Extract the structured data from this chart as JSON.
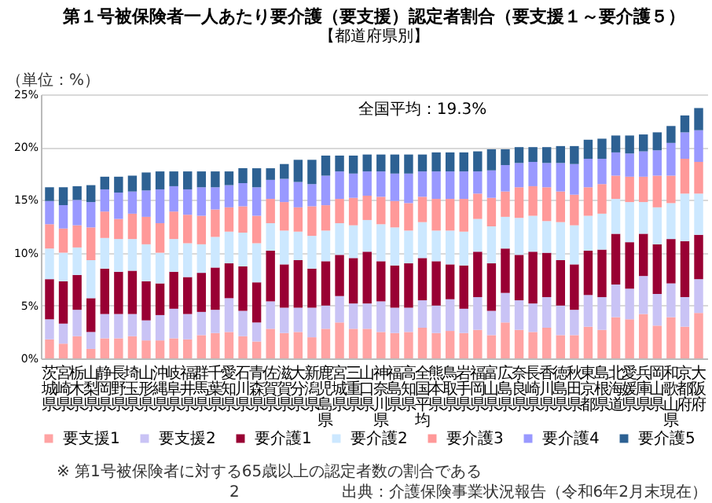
{
  "chart_data": {
    "type": "bar",
    "stacked": true,
    "title": "第１号被保険者一人あたり要介護（要支援）認定者割合（要支援１～要介護５）",
    "subtitle": "【都道府県別】",
    "categories": [
      "茨城県",
      "宮崎県",
      "栃木県",
      "山梨県",
      "静岡県",
      "長野県",
      "埼玉県",
      "山形県",
      "沖縄県",
      "岐阜県",
      "福井県",
      "群馬県",
      "千葉県",
      "愛知県",
      "石川県",
      "青森県",
      "佐賀県",
      "滋賀県",
      "大分県",
      "新潟県",
      "鹿児島県",
      "宮城県",
      "三重県",
      "山口県",
      "神奈川県",
      "福島県",
      "高知県",
      "全国平均",
      "熊本県",
      "鳥取県",
      "岩手県",
      "福岡県",
      "富山県",
      "広島県",
      "奈良県",
      "長崎県",
      "香川県",
      "徳島県",
      "秋田県",
      "東京都",
      "島根県",
      "北海道",
      "愛媛県",
      "兵庫県",
      "岡山県",
      "和歌山県",
      "京都府",
      "大阪府"
    ],
    "series": [
      {
        "name": "要支援1",
        "color": "#ffa3a3",
        "values": [
          1.8,
          1.4,
          2.1,
          0.9,
          1.9,
          1.9,
          2.1,
          1.7,
          1.7,
          1.9,
          1.8,
          2.2,
          2.4,
          2.5,
          2.1,
          1.6,
          2.8,
          2.4,
          2.5,
          2.0,
          2.8,
          3.4,
          2.8,
          2.8,
          2.5,
          2.4,
          2.5,
          2.9,
          2.4,
          2.6,
          2.4,
          2.7,
          2.2,
          3.4,
          2.7,
          2.5,
          2.9,
          2.2,
          2.2,
          3.0,
          2.7,
          3.9,
          3.7,
          4.2,
          3.1,
          3.9,
          3.0,
          4.3
        ]
      },
      {
        "name": "要支援2",
        "color": "#c9c3f5",
        "values": [
          1.9,
          1.9,
          2.5,
          1.6,
          2.3,
          2.3,
          2.1,
          1.9,
          2.4,
          2.8,
          2.4,
          2.2,
          2.2,
          3.2,
          2.4,
          1.8,
          2.6,
          2.4,
          2.3,
          2.8,
          2.2,
          2.5,
          2.4,
          2.4,
          2.9,
          2.4,
          2.3,
          2.6,
          2.6,
          3.0,
          2.3,
          3.1,
          2.3,
          2.8,
          2.8,
          2.7,
          2.9,
          2.8,
          2.4,
          3.0,
          3.1,
          3.1,
          2.9,
          3.6,
          3.0,
          3.2,
          2.8,
          3.2
        ]
      },
      {
        "name": "要介護1",
        "color": "#990033",
        "values": [
          3.8,
          4.0,
          3.3,
          3.2,
          4.3,
          4.0,
          4.1,
          3.7,
          3.0,
          3.5,
          3.5,
          3.7,
          4.0,
          3.3,
          4.2,
          3.8,
          4.8,
          4.1,
          4.5,
          3.7,
          4.2,
          3.9,
          4.3,
          4.9,
          3.8,
          4.0,
          4.2,
          4.0,
          4.2,
          3.3,
          4.1,
          4.3,
          4.5,
          4.2,
          4.3,
          4.9,
          4.2,
          4.3,
          4.3,
          4.2,
          4.5,
          4.8,
          4.4,
          4.0,
          4.7,
          4.2,
          5.3,
          4.2
        ]
      },
      {
        "name": "要介護2",
        "color": "#cce8ff",
        "values": [
          2.9,
          2.7,
          2.6,
          3.6,
          2.9,
          3.1,
          3.0,
          3.5,
          2.9,
          3.1,
          3.2,
          2.7,
          2.9,
          3.0,
          3.2,
          3.7,
          2.6,
          3.2,
          2.7,
          3.1,
          2.9,
          3.0,
          3.1,
          3.0,
          3.5,
          3.6,
          3.1,
          3.4,
          2.9,
          3.2,
          3.2,
          3.1,
          3.5,
          3.0,
          3.5,
          3.4,
          3.0,
          3.6,
          3.7,
          3.3,
          3.4,
          3.3,
          3.8,
          3.0,
          3.5,
          3.4,
          4.5,
          3.9
        ]
      },
      {
        "name": "要介護3",
        "color": "#ff9999",
        "values": [
          2.3,
          2.3,
          2.1,
          3.1,
          2.5,
          1.9,
          2.4,
          2.6,
          2.8,
          2.6,
          2.7,
          2.7,
          2.6,
          2.3,
          2.5,
          2.6,
          2.3,
          2.7,
          2.3,
          2.8,
          2.4,
          2.3,
          2.6,
          2.3,
          2.6,
          2.5,
          2.6,
          2.4,
          3.0,
          3.0,
          3.1,
          2.4,
          2.7,
          2.4,
          2.9,
          2.8,
          3.2,
          2.9,
          2.9,
          2.7,
          2.8,
          2.2,
          2.4,
          2.4,
          3.0,
          2.6,
          3.3,
          3.0
        ]
      },
      {
        "name": "要介護4",
        "color": "#9999ff",
        "values": [
          2.2,
          2.2,
          2.4,
          2.4,
          2.1,
          2.5,
          2.1,
          2.5,
          3.2,
          2.4,
          2.4,
          2.7,
          2.1,
          2.1,
          2.2,
          2.7,
          1.8,
          2.2,
          2.4,
          2.1,
          2.8,
          2.6,
          2.3,
          2.3,
          2.4,
          2.6,
          2.8,
          2.4,
          2.6,
          2.6,
          2.6,
          2.1,
          2.6,
          2.5,
          2.3,
          2.3,
          2.3,
          2.7,
          2.9,
          2.7,
          2.4,
          2.2,
          2.2,
          2.4,
          2.4,
          3.1,
          2.5,
          3.0
        ]
      },
      {
        "name": "要介護5",
        "color": "#2d6193",
        "values": [
          1.3,
          1.7,
          1.3,
          1.6,
          1.2,
          1.5,
          1.5,
          1.7,
          1.7,
          1.4,
          1.7,
          1.5,
          1.5,
          1.3,
          1.4,
          1.8,
          1.1,
          1.4,
          2.1,
          2.3,
          1.9,
          1.5,
          1.7,
          1.6,
          1.6,
          1.8,
          1.8,
          1.6,
          1.8,
          1.8,
          1.8,
          1.9,
          2.0,
          1.5,
          1.5,
          1.4,
          1.5,
          1.6,
          1.7,
          1.8,
          1.9,
          1.6,
          1.7,
          1.6,
          1.7,
          1.6,
          1.6,
          2.1
        ]
      }
    ],
    "ylim": [
      0,
      25
    ],
    "yticks": [
      {
        "value": 0,
        "label": "0%"
      },
      {
        "value": 5,
        "label": "5%"
      },
      {
        "value": 10,
        "label": "10%"
      },
      {
        "value": 15,
        "label": "15%"
      },
      {
        "value": 20,
        "label": "20%"
      },
      {
        "value": 25,
        "label": "25%"
      }
    ],
    "grid": "y",
    "legend": "bottom",
    "annotations": [
      "（単位：%）",
      "※ 第1号被保険者に対する65歳以上の認定者数の割合である",
      "出典：介護保険事業状況報告（令和6年2月末現在）",
      "2",
      {
        "text": "全国平均：19.3%",
        "x": "全国平均",
        "y": 19.3
      }
    ]
  }
}
